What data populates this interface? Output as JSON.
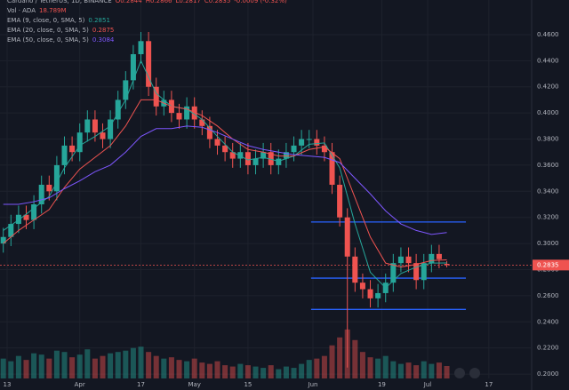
{
  "chart_data": {
    "type": "candlestick",
    "header": [
      "Cardano / TetherUS, 1D, BINANCE",
      "O0.2844",
      "H0.2866",
      "L0.2817",
      "C0.2835",
      "-0.0009 (-0.32%)"
    ],
    "volume_name": "Vol · ADA",
    "volume_value_label": "18.789M",
    "up_color": "#26a69a",
    "down_color": "#ef5350",
    "x": [
      0,
      2,
      4,
      6,
      8,
      10,
      12,
      14,
      16,
      18,
      20,
      22,
      24,
      26,
      28,
      30,
      32,
      34,
      36,
      38,
      40,
      42,
      44,
      46,
      48,
      50,
      52,
      54,
      56,
      58,
      60,
      62,
      64,
      66,
      68,
      70,
      72,
      74,
      76,
      78,
      80,
      82,
      84,
      86,
      88,
      90,
      92,
      94,
      96,
      98,
      100,
      102,
      104,
      106,
      108,
      110,
      112,
      114,
      116
    ],
    "open": [
      0.3,
      0.305,
      0.315,
      0.322,
      0.318,
      0.33,
      0.345,
      0.34,
      0.36,
      0.375,
      0.37,
      0.385,
      0.395,
      0.385,
      0.38,
      0.395,
      0.41,
      0.425,
      0.445,
      0.455,
      0.42,
      0.405,
      0.41,
      0.4,
      0.395,
      0.405,
      0.395,
      0.39,
      0.38,
      0.375,
      0.37,
      0.365,
      0.37,
      0.36,
      0.365,
      0.37,
      0.36,
      0.365,
      0.37,
      0.375,
      0.38,
      0.38,
      0.375,
      0.37,
      0.345,
      0.32,
      0.29,
      0.27,
      0.265,
      0.258,
      0.262,
      0.27,
      0.285,
      0.29,
      0.285,
      0.272,
      0.285,
      0.292,
      0.2844
    ],
    "high": [
      0.312,
      0.322,
      0.329,
      0.329,
      0.337,
      0.352,
      0.352,
      0.367,
      0.382,
      0.382,
      0.392,
      0.402,
      0.402,
      0.392,
      0.402,
      0.417,
      0.432,
      0.452,
      0.462,
      0.462,
      0.427,
      0.417,
      0.417,
      0.407,
      0.412,
      0.412,
      0.402,
      0.397,
      0.387,
      0.382,
      0.377,
      0.377,
      0.377,
      0.372,
      0.377,
      0.377,
      0.372,
      0.377,
      0.382,
      0.387,
      0.387,
      0.387,
      0.382,
      0.377,
      0.352,
      0.327,
      0.297,
      0.277,
      0.272,
      0.269,
      0.277,
      0.292,
      0.297,
      0.297,
      0.292,
      0.292,
      0.299,
      0.299,
      0.2866
    ],
    "low": [
      0.293,
      0.298,
      0.308,
      0.311,
      0.311,
      0.323,
      0.333,
      0.333,
      0.353,
      0.363,
      0.363,
      0.378,
      0.378,
      0.373,
      0.373,
      0.388,
      0.403,
      0.418,
      0.438,
      0.413,
      0.398,
      0.398,
      0.393,
      0.388,
      0.388,
      0.388,
      0.383,
      0.373,
      0.368,
      0.363,
      0.358,
      0.358,
      0.353,
      0.353,
      0.358,
      0.353,
      0.353,
      0.358,
      0.363,
      0.368,
      0.373,
      0.368,
      0.363,
      0.338,
      0.313,
      0.205,
      0.263,
      0.258,
      0.251,
      0.251,
      0.255,
      0.263,
      0.278,
      0.278,
      0.265,
      0.265,
      0.278,
      0.281,
      0.2817
    ],
    "close": [
      0.305,
      0.315,
      0.322,
      0.318,
      0.33,
      0.345,
      0.34,
      0.36,
      0.375,
      0.37,
      0.385,
      0.395,
      0.385,
      0.38,
      0.395,
      0.41,
      0.425,
      0.445,
      0.455,
      0.42,
      0.405,
      0.41,
      0.4,
      0.395,
      0.405,
      0.395,
      0.39,
      0.38,
      0.375,
      0.37,
      0.365,
      0.37,
      0.36,
      0.365,
      0.37,
      0.36,
      0.365,
      0.37,
      0.375,
      0.38,
      0.38,
      0.375,
      0.37,
      0.345,
      0.32,
      0.29,
      0.27,
      0.265,
      0.258,
      0.262,
      0.27,
      0.285,
      0.29,
      0.285,
      0.272,
      0.285,
      0.292,
      0.288,
      0.2835
    ],
    "volume": [
      30,
      26,
      34,
      28,
      38,
      36,
      30,
      42,
      40,
      32,
      36,
      44,
      30,
      34,
      38,
      40,
      42,
      46,
      48,
      40,
      34,
      30,
      32,
      28,
      26,
      30,
      24,
      22,
      26,
      20,
      18,
      22,
      20,
      18,
      16,
      20,
      14,
      18,
      16,
      22,
      28,
      30,
      34,
      50,
      62,
      74,
      58,
      40,
      32,
      30,
      34,
      26,
      22,
      24,
      20,
      26,
      22,
      24,
      18.789
    ],
    "vlim": [
      0,
      100
    ],
    "ema": [
      {
        "name": "EMA (9, close, 0, SMA, 5)",
        "value_label": "0.2851",
        "color": "#26a69a",
        "x": [
          0,
          4,
          8,
          12,
          16,
          20,
          24,
          28,
          32,
          36,
          40,
          44,
          48,
          52,
          56,
          60,
          64,
          68,
          72,
          76,
          80,
          84,
          88,
          92,
          96,
          100,
          104,
          108,
          112,
          116
        ],
        "values": [
          0.31,
          0.318,
          0.327,
          0.336,
          0.358,
          0.375,
          0.382,
          0.39,
          0.41,
          0.44,
          0.415,
          0.405,
          0.403,
          0.395,
          0.382,
          0.37,
          0.364,
          0.366,
          0.363,
          0.367,
          0.376,
          0.377,
          0.358,
          0.315,
          0.278,
          0.266,
          0.277,
          0.282,
          0.285,
          0.2851
        ]
      },
      {
        "name": "EMA (20, close, 0, SMA, 5)",
        "value_label": "0.2875",
        "color": "#ef5350",
        "x": [
          0,
          4,
          8,
          12,
          16,
          20,
          24,
          28,
          32,
          36,
          40,
          44,
          48,
          52,
          56,
          60,
          64,
          68,
          72,
          76,
          80,
          84,
          88,
          92,
          96,
          100,
          104,
          108,
          112,
          116
        ],
        "values": [
          0.3,
          0.31,
          0.318,
          0.326,
          0.343,
          0.357,
          0.366,
          0.375,
          0.39,
          0.41,
          0.41,
          0.405,
          0.403,
          0.398,
          0.39,
          0.38,
          0.372,
          0.37,
          0.367,
          0.367,
          0.372,
          0.374,
          0.365,
          0.335,
          0.305,
          0.285,
          0.282,
          0.284,
          0.287,
          0.2875
        ]
      },
      {
        "name": "EMA (50, close, 0, SMA, 5)",
        "value_label": "0.3084",
        "color": "#7e57ff",
        "x": [
          0,
          4,
          8,
          12,
          16,
          20,
          24,
          28,
          32,
          36,
          40,
          44,
          48,
          52,
          56,
          60,
          64,
          68,
          72,
          76,
          80,
          84,
          88,
          92,
          96,
          100,
          104,
          108,
          112,
          116
        ],
        "values": [
          0.33,
          0.33,
          0.332,
          0.335,
          0.342,
          0.348,
          0.355,
          0.36,
          0.37,
          0.382,
          0.388,
          0.388,
          0.39,
          0.389,
          0.385,
          0.38,
          0.375,
          0.372,
          0.37,
          0.368,
          0.367,
          0.366,
          0.362,
          0.35,
          0.338,
          0.325,
          0.315,
          0.31,
          0.307,
          0.3084
        ]
      }
    ],
    "levels": [
      0.3165,
      0.2735,
      0.2495
    ],
    "level_x": [
      80.5,
      121
    ],
    "level_color": "#2962ff",
    "price": {
      "value": 0.2835,
      "label": "0.2835"
    },
    "xlim": [
      -0.86,
      138.2
    ],
    "xticks": [
      {
        "value": 1,
        "label": "13"
      },
      {
        "value": 20,
        "label": "Apr"
      },
      {
        "value": 36,
        "label": "17"
      },
      {
        "value": 50,
        "label": "May"
      },
      {
        "value": 64,
        "label": "15"
      },
      {
        "value": 81,
        "label": "Jun"
      },
      {
        "value": 99,
        "label": "19"
      },
      {
        "value": 111,
        "label": "Jul"
      },
      {
        "value": 127,
        "label": "17"
      }
    ],
    "ylim": [
      0.1878,
      0.4865
    ],
    "yticks": [
      {
        "value": 0.2,
        "label": "0.2000"
      },
      {
        "value": 0.22,
        "label": "0.2200"
      },
      {
        "value": 0.24,
        "label": "0.2400"
      },
      {
        "value": 0.26,
        "label": "0.2600"
      },
      {
        "value": 0.28,
        "label": "0.2800"
      },
      {
        "value": 0.3,
        "label": "0.3000"
      },
      {
        "value": 0.32,
        "label": "0.3200"
      },
      {
        "value": 0.34,
        "label": "0.3400"
      },
      {
        "value": 0.36,
        "label": "0.3600"
      },
      {
        "value": 0.38,
        "label": "0.3800"
      },
      {
        "value": 0.4,
        "label": "0.4000"
      },
      {
        "value": 0.42,
        "label": "0.4200"
      },
      {
        "value": 0.44,
        "label": "0.4400"
      },
      {
        "value": 0.46,
        "label": "0.4600"
      }
    ],
    "grid": true
  }
}
